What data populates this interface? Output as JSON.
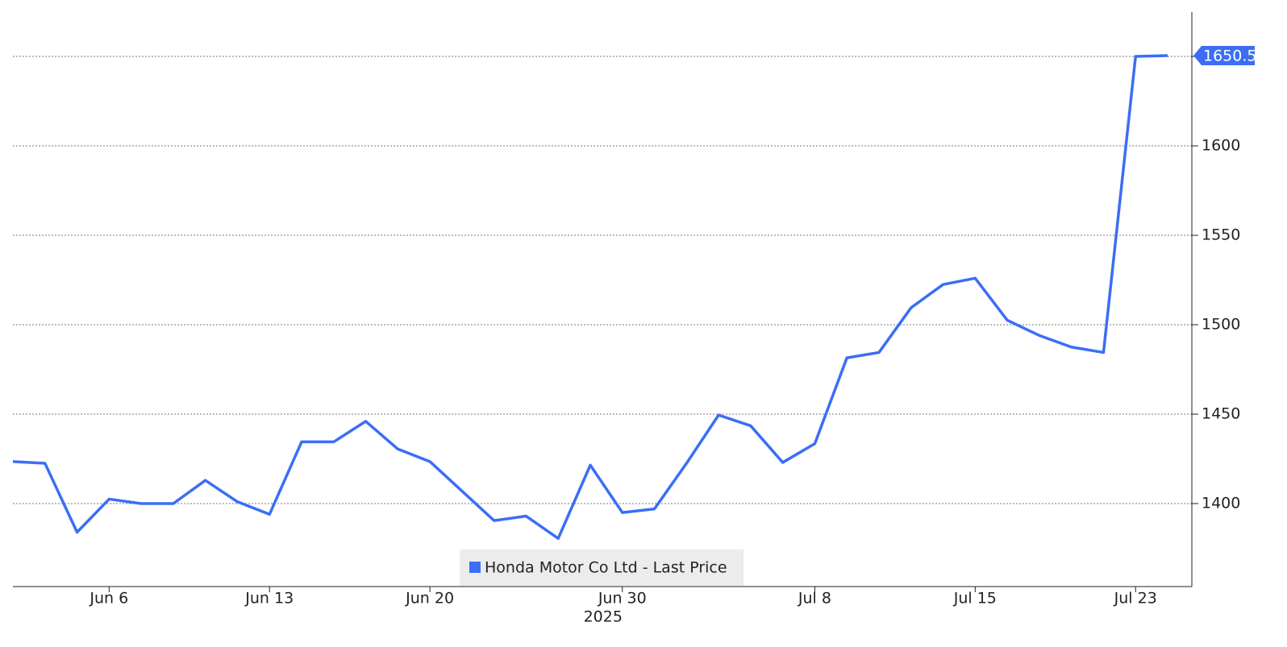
{
  "chart_data": {
    "type": "line",
    "categories": [
      null,
      null,
      null,
      "Jun 6",
      null,
      null,
      null,
      null,
      "Jun 13",
      null,
      null,
      null,
      null,
      "Jun 20",
      null,
      null,
      null,
      null,
      null,
      "Jun 30",
      null,
      null,
      null,
      null,
      null,
      "Jul 8",
      null,
      null,
      null,
      null,
      "Jul 15",
      null,
      null,
      null,
      null,
      "Jul 23",
      null
    ],
    "year": "2025",
    "series": [
      {
        "name": "Honda Motor Co Ltd - Last Price",
        "color": "#3b6ef5",
        "values": [
          1423.5,
          1422.5,
          1384,
          1402.5,
          1400,
          1400,
          1413,
          1401,
          1394,
          1434.5,
          1434.5,
          1446,
          1430.5,
          1423.5,
          1407,
          1390.5,
          1393,
          1380.5,
          1421.5,
          1395,
          1397,
          1422.5,
          1449.5,
          1443.5,
          1423,
          1433.5,
          1481.5,
          1484.5,
          1509.5,
          1522.5,
          1526,
          1502.5,
          1494,
          1487.5,
          1484.5,
          1650,
          1650.5
        ]
      }
    ],
    "ylim": [
      1353.6,
      1674.8
    ],
    "yticks": [
      1400,
      1450,
      1500,
      1550,
      1600,
      1650
    ],
    "grid": true,
    "legend": "bottom"
  }
}
